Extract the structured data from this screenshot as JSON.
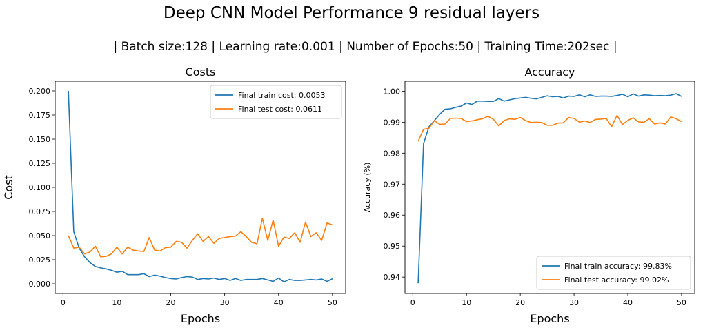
{
  "suptitle": "Deep CNN Model Performance 9 residual layers",
  "subtitle": "| Batch size:128 | Learning rate:0.001 | Number of Epochs:50 | Training Time:202sec |",
  "colors": {
    "train": "#1f77b4",
    "test": "#ff7f0e"
  },
  "chart_data": [
    {
      "type": "line",
      "title": "Costs",
      "xlabel": "Epochs",
      "ylabel": "Cost",
      "xlim": [
        -1.45,
        52.45
      ],
      "ylim": [
        -0.01,
        0.21
      ],
      "xticks": [
        0,
        10,
        20,
        30,
        40,
        50
      ],
      "xtick_labels": [
        "0",
        "10",
        "20",
        "30",
        "40",
        "50"
      ],
      "yticks": [
        0.0,
        0.025,
        0.05,
        0.075,
        0.1,
        0.125,
        0.15,
        0.175,
        0.2
      ],
      "ytick_labels": [
        "0.000",
        "0.025",
        "0.050",
        "0.075",
        "0.100",
        "0.125",
        "0.150",
        "0.175",
        "0.200"
      ],
      "legend_position": "top-right",
      "grid": false,
      "x": [
        1,
        2,
        3,
        4,
        5,
        6,
        7,
        8,
        9,
        10,
        11,
        12,
        13,
        14,
        15,
        16,
        17,
        18,
        19,
        20,
        21,
        22,
        23,
        24,
        25,
        26,
        27,
        28,
        29,
        30,
        31,
        32,
        33,
        34,
        35,
        36,
        37,
        38,
        39,
        40,
        41,
        42,
        43,
        44,
        45,
        46,
        47,
        48,
        49,
        50
      ],
      "series": [
        {
          "name": "Final train cost: 0.0053",
          "color_key": "train",
          "values": [
            0.2,
            0.054,
            0.037,
            0.028,
            0.022,
            0.018,
            0.0165,
            0.0155,
            0.014,
            0.012,
            0.013,
            0.0095,
            0.0095,
            0.0095,
            0.0105,
            0.0075,
            0.009,
            0.008,
            0.0065,
            0.0055,
            0.005,
            0.0065,
            0.0075,
            0.007,
            0.0045,
            0.0055,
            0.005,
            0.006,
            0.0045,
            0.0055,
            0.0035,
            0.0055,
            0.0035,
            0.0045,
            0.0045,
            0.0045,
            0.0055,
            0.004,
            0.0025,
            0.006,
            0.002,
            0.0045,
            0.0035,
            0.0035,
            0.004,
            0.0045,
            0.004,
            0.005,
            0.0025,
            0.0053
          ]
        },
        {
          "name": "Final test cost: 0.0611",
          "color_key": "test",
          "values": [
            0.05,
            0.037,
            0.038,
            0.031,
            0.033,
            0.039,
            0.028,
            0.0285,
            0.031,
            0.038,
            0.031,
            0.038,
            0.035,
            0.034,
            0.0335,
            0.048,
            0.035,
            0.034,
            0.0375,
            0.038,
            0.044,
            0.043,
            0.037,
            0.045,
            0.052,
            0.044,
            0.049,
            0.042,
            0.047,
            0.048,
            0.049,
            0.0495,
            0.054,
            0.049,
            0.043,
            0.0415,
            0.068,
            0.045,
            0.066,
            0.039,
            0.0485,
            0.047,
            0.053,
            0.043,
            0.064,
            0.049,
            0.053,
            0.045,
            0.063,
            0.0611
          ]
        }
      ]
    },
    {
      "type": "line",
      "title": "Accuracy",
      "xlabel": "Epochs",
      "ylabel": "Accuracy (%)",
      "xlim": [
        -1.45,
        52.45
      ],
      "ylim": [
        0.9347,
        1.0032
      ],
      "xticks": [
        0,
        10,
        20,
        30,
        40,
        50
      ],
      "xtick_labels": [
        "0",
        "10",
        "20",
        "30",
        "40",
        "50"
      ],
      "yticks": [
        0.94,
        0.95,
        0.96,
        0.97,
        0.98,
        0.99,
        1.0
      ],
      "ytick_labels": [
        "0.94",
        "0.95",
        "0.96",
        "0.97",
        "0.98",
        "0.99",
        "1.00"
      ],
      "legend_position": "bottom-right",
      "grid": false,
      "x": [
        1,
        2,
        3,
        4,
        5,
        6,
        7,
        8,
        9,
        10,
        11,
        12,
        13,
        14,
        15,
        16,
        17,
        18,
        19,
        20,
        21,
        22,
        23,
        24,
        25,
        26,
        27,
        28,
        29,
        30,
        31,
        32,
        33,
        34,
        35,
        36,
        37,
        38,
        39,
        40,
        41,
        42,
        43,
        44,
        45,
        46,
        47,
        48,
        49,
        50
      ],
      "series": [
        {
          "name": "Final train accuracy: 99.83%",
          "color_key": "train",
          "values": [
            0.938,
            0.983,
            0.9885,
            0.9905,
            0.9925,
            0.9942,
            0.9943,
            0.9948,
            0.9952,
            0.9962,
            0.9957,
            0.9968,
            0.9968,
            0.9967,
            0.9967,
            0.9976,
            0.9968,
            0.9972,
            0.9976,
            0.9978,
            0.998,
            0.9977,
            0.9975,
            0.998,
            0.9985,
            0.9982,
            0.9983,
            0.9978,
            0.9984,
            0.9983,
            0.9988,
            0.9982,
            0.9988,
            0.9983,
            0.9984,
            0.9984,
            0.9983,
            0.9986,
            0.999,
            0.9982,
            0.9991,
            0.9984,
            0.9988,
            0.9987,
            0.9985,
            0.9986,
            0.9985,
            0.9987,
            0.9992,
            0.9983
          ]
        },
        {
          "name": "Final test accuracy: 99.02%",
          "color_key": "test",
          "values": [
            0.9838,
            0.9877,
            0.988,
            0.9905,
            0.9893,
            0.9894,
            0.9912,
            0.9913,
            0.9912,
            0.9902,
            0.9904,
            0.9908,
            0.9911,
            0.9919,
            0.9909,
            0.9888,
            0.9905,
            0.9911,
            0.9909,
            0.9915,
            0.9905,
            0.9899,
            0.99,
            0.9899,
            0.989,
            0.989,
            0.9897,
            0.9898,
            0.9915,
            0.9912,
            0.99,
            0.9904,
            0.9899,
            0.9909,
            0.991,
            0.9912,
            0.9885,
            0.9922,
            0.9892,
            0.9906,
            0.9914,
            0.9901,
            0.99,
            0.9911,
            0.9894,
            0.9898,
            0.9894,
            0.9917,
            0.9911,
            0.9902
          ]
        }
      ]
    }
  ]
}
